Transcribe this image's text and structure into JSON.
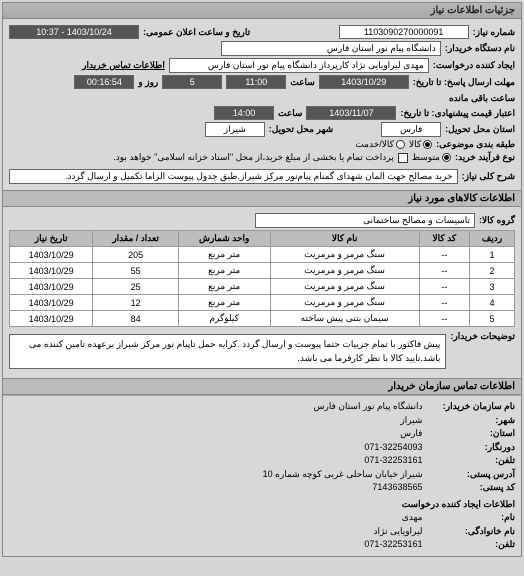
{
  "panel": {
    "title": "جزئیات اطلاعات نیاز"
  },
  "header": {
    "number_label": "شماره نیاز:",
    "number": "1103090270000091",
    "announce_label": "تاریخ و ساعت اعلان عمومی:",
    "announce_value": "1403/10/24 - 10:37",
    "buyer_label": "نام دستگاه خریدار:",
    "buyer": "دانشگاه پیام نور استان فارس",
    "requester_label": "ایجاد کننده درخواست:",
    "requester": "مهدی لیراویایی نژاد کارپرداز دانشگاه پیام نور استان فارس",
    "buyer_contact_label": "اطلاعات تماس خریدار",
    "send_deadline_label": "مهلت ارسال پاسخ: تا تاریخ:",
    "send_deadline_date": "1403/10/29",
    "time_lbl": "ساعت",
    "send_deadline_time": "11:00",
    "remain_lbl1": "روز و",
    "remain_days": "5",
    "remain_time": "00:16:54",
    "remain_lbl2": "ساعت باقی مانده",
    "quote_valid_label": "اعتبار قیمت پیشنهادی: تا تاریخ:",
    "quote_valid_date": "1403/11/07",
    "quote_valid_time": "14:00",
    "state_label": "استان محل تحویل:",
    "state": "فارس",
    "city_label": "شهر محل تحویل:",
    "city": "شیراز",
    "budget_label": "طبقه بندی موضوعی:",
    "budget_kala": "کالا",
    "budget_payment": "کالا/خدمت",
    "process_label": "نوع فرآیند خرید:",
    "process_options": {
      "medium": "متوسط",
      "high": "پرداخت تمام یا بخشی از مبلغ خرید،از محل \"اسناد خزانه اسلامی\" خواهد بود."
    },
    "summary_label": "شرح کلی نیاز:",
    "summary": "خرید مصالح جهت المان شهدای گمنام پیام‌نور مرکز شیراز.طبق جدول پیوست الزاما تکمیل و ارسال گردد."
  },
  "goods": {
    "section_title": "اطلاعات کالاهای مورد نیاز",
    "group_label": "گروه کالا:",
    "group": "تاسیسات و مصالح ساختمانی",
    "columns": {
      "row": "ردیف",
      "code": "کد کالا",
      "name": "نام کالا",
      "unit": "واحد شمارش",
      "qty": "تعداد / مقدار",
      "date": "تاریخ نیاز"
    },
    "rows": [
      {
        "n": "1",
        "code": "--",
        "name": "سنگ مرمر و مرمریت",
        "unit": "متر مربع",
        "qty": "205",
        "date": "1403/10/29"
      },
      {
        "n": "2",
        "code": "--",
        "name": "سنگ مرمر و مرمریت",
        "unit": "متر مربع",
        "qty": "55",
        "date": "1403/10/29"
      },
      {
        "n": "3",
        "code": "--",
        "name": "سنگ مرمر و مرمریت",
        "unit": "متر مربع",
        "qty": "25",
        "date": "1403/10/29"
      },
      {
        "n": "4",
        "code": "--",
        "name": "سنگ مرمر و مرمریت",
        "unit": "متر مربع",
        "qty": "12",
        "date": "1403/10/29"
      },
      {
        "n": "5",
        "code": "--",
        "name": "سیمان بتنی پیش ساخته",
        "unit": "کیلوگرم",
        "qty": "84",
        "date": "1403/10/29"
      }
    ],
    "notes_label": "توضیحات خریدار:",
    "notes": "پیش فاکتور با تمام جزییات حتما پیوست و ارسال گردد .کرایه حمل تاپیام نور مرکز شیراز برعهده تامین کننده می باشد.تایید کالا با نظر کارفرما می باشد."
  },
  "contact": {
    "section_title": "اطلاعات تماس سازمان خریدار",
    "org_label": "نام سازمان خریدار:",
    "org": "دانشگاه پیام نور استان فارس",
    "city_label": "شهر:",
    "city": "شیراز",
    "state_label": "استان:",
    "state": "فارس",
    "fax_label": "دورنگار:",
    "fax": "071-32254093",
    "phone_label": "تلفن:",
    "phone": "071-32253161",
    "postal_label": "آدرس پستی:",
    "postal": "شیراز خیابان ساحلی غربی کوچه شماره 10",
    "postcode_label": "کد پستی:",
    "postcode": "7143638565",
    "creator_title": "اطلاعات ایجاد کننده درخواست",
    "name_label": "نام:",
    "name": "مهدی",
    "family_label": "نام خانوادگی:",
    "family": "لیراویایی نژاد",
    "tel_label": "تلفن:",
    "tel": "071-32253161"
  }
}
